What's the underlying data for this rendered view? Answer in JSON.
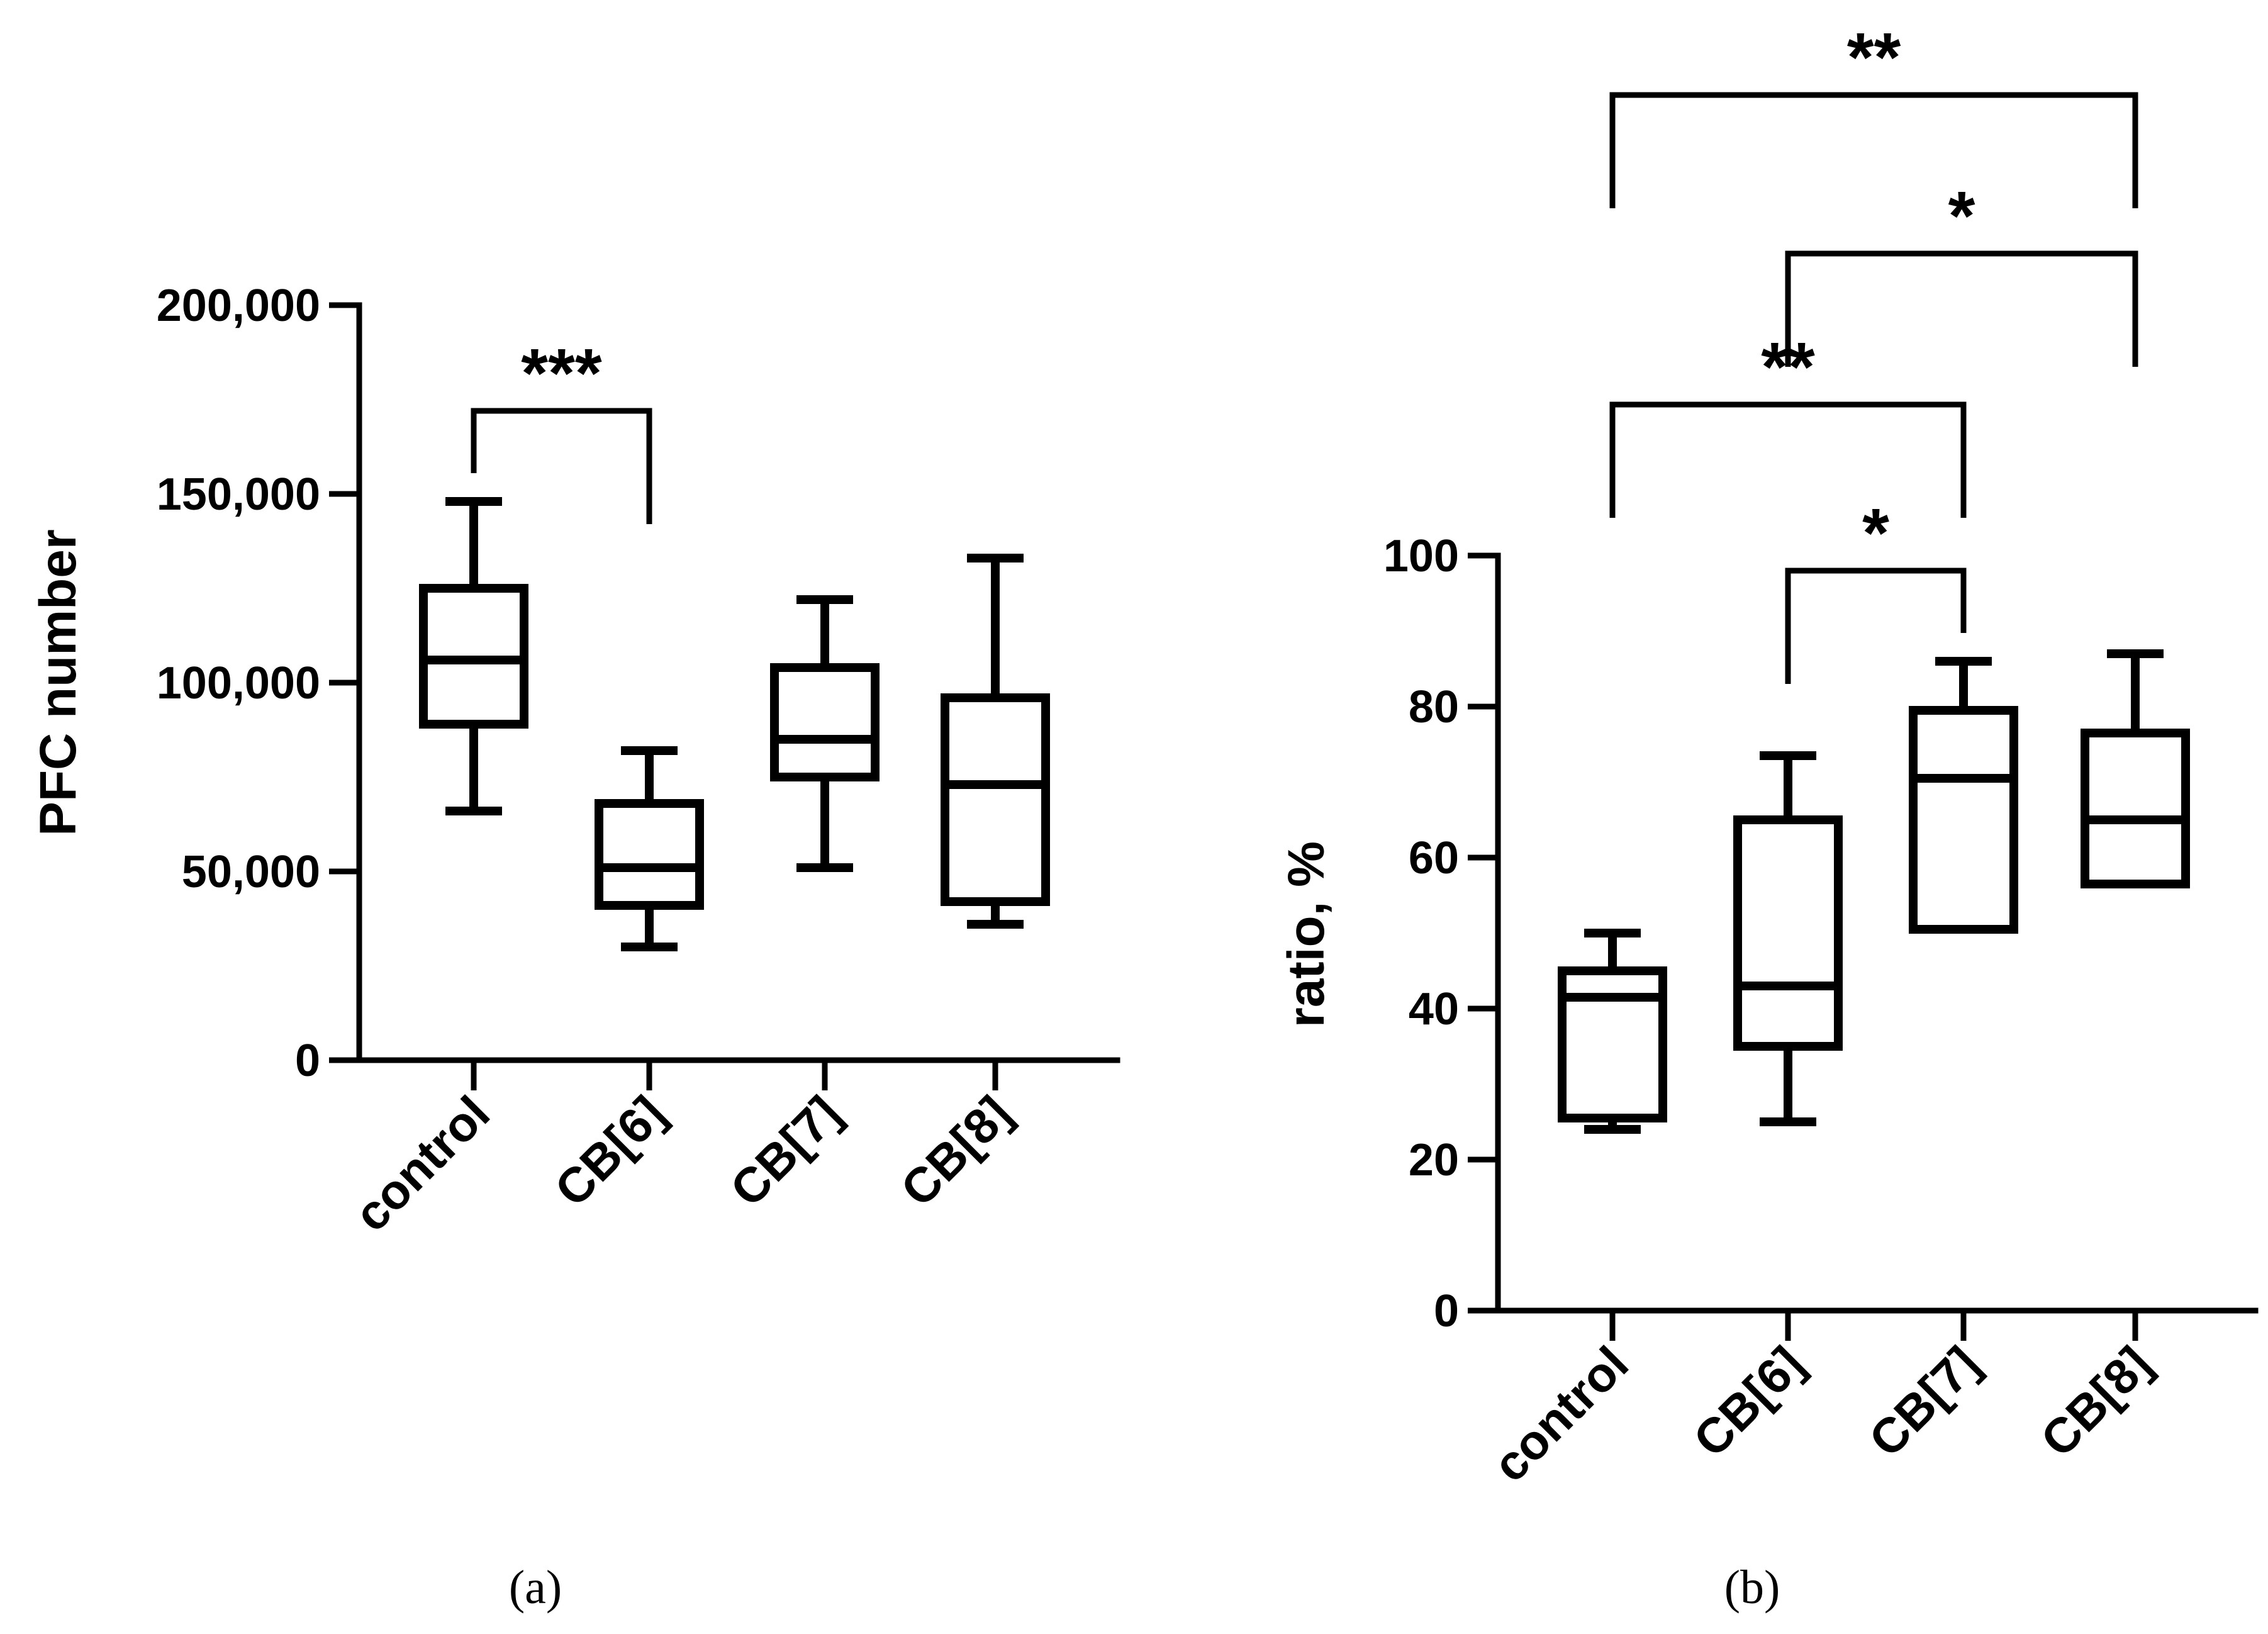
{
  "chart_data": [
    {
      "type": "box",
      "panel_label": "(a)",
      "title": "",
      "xlabel": "",
      "ylabel": "PFC number",
      "ylim": [
        0,
        200000
      ],
      "yticks": [
        0,
        50000,
        100000,
        150000,
        200000
      ],
      "ytick_labels": [
        "0",
        "50,000",
        "100,000",
        "150,000",
        "200,000"
      ],
      "categories": [
        "control",
        "CB[6]",
        "CB[7]",
        "CB[8]"
      ],
      "boxes": [
        {
          "min": 66000,
          "q1": 89000,
          "median": 106000,
          "q3": 125000,
          "max": 148000
        },
        {
          "min": 30000,
          "q1": 41000,
          "median": 51000,
          "q3": 68000,
          "max": 82000
        },
        {
          "min": 51000,
          "q1": 75000,
          "median": 85000,
          "q3": 104000,
          "max": 122000
        },
        {
          "min": 36000,
          "q1": 42000,
          "median": 73000,
          "q3": 96000,
          "max": 133000
        }
      ],
      "significance": [
        {
          "from": 0,
          "to": 1,
          "label": "***",
          "y": 172000
        }
      ]
    },
    {
      "type": "box",
      "panel_label": "(b)",
      "title": "",
      "xlabel": "",
      "ylabel": "ratio, %",
      "ylim": [
        0,
        100
      ],
      "yticks": [
        0,
        20,
        40,
        60,
        80,
        100
      ],
      "ytick_labels": [
        "0",
        "20",
        "40",
        "60",
        "80",
        "100"
      ],
      "categories": [
        "control",
        "CB[6]",
        "CB[7]",
        "CB[8]"
      ],
      "boxes": [
        {
          "min": 24,
          "q1": 25.5,
          "median": 41.5,
          "q3": 45,
          "max": 50
        },
        {
          "min": 25,
          "q1": 35,
          "median": 43,
          "q3": 65,
          "max": 73.5
        },
        {
          "min": 50.5,
          "q1": 50.5,
          "median": 70.5,
          "q3": 79.5,
          "max": 86
        },
        {
          "min": 56.5,
          "q1": 56.5,
          "median": 65,
          "q3": 76.5,
          "max": 87
        }
      ],
      "significance": [
        {
          "from": 1,
          "to": 2,
          "label": "*",
          "y": 98
        },
        {
          "from": 0,
          "to": 2,
          "label": "**",
          "y": 120
        },
        {
          "from": 1,
          "to": 3,
          "label": "*",
          "y": 140
        },
        {
          "from": 0,
          "to": 3,
          "label": "**",
          "y": 161
        }
      ]
    }
  ]
}
